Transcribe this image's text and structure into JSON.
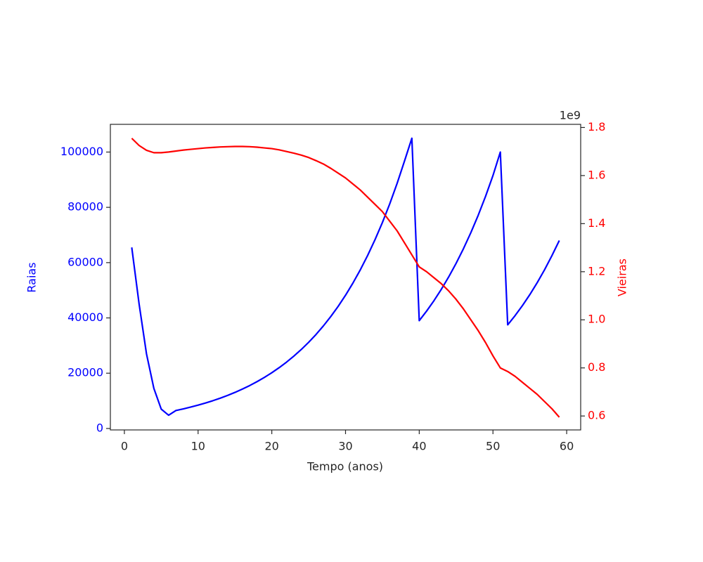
{
  "chart_data": {
    "type": "line",
    "x_label": "Tempo (anos)",
    "y_label": "Raias",
    "y2_label": "Vieiras",
    "y2_offset_label": "1e9",
    "x": [
      1,
      2,
      3,
      4,
      5,
      6,
      7,
      8,
      9,
      10,
      11,
      12,
      13,
      14,
      15,
      16,
      17,
      18,
      19,
      20,
      21,
      22,
      23,
      24,
      25,
      26,
      27,
      28,
      29,
      30,
      31,
      32,
      33,
      34,
      35,
      36,
      37,
      38,
      39,
      40,
      41,
      42,
      43,
      44,
      45,
      46,
      47,
      48,
      49,
      50,
      51,
      52,
      53,
      54,
      55,
      56,
      57,
      58,
      59
    ],
    "series": [
      {
        "name": "Raias",
        "color": "#0000ff",
        "axis": "y",
        "values": [
          65500,
          45000,
          27000,
          14500,
          7000,
          4800,
          6500,
          7090,
          7740,
          8440,
          9210,
          10050,
          10960,
          11960,
          13050,
          14240,
          15530,
          16950,
          18490,
          20170,
          22010,
          24010,
          26200,
          28580,
          31180,
          34020,
          37120,
          40500,
          44180,
          48200,
          52590,
          57370,
          62600,
          68290,
          74500,
          81280,
          88680,
          96750,
          105000,
          39000,
          42470,
          46250,
          50370,
          54850,
          59730,
          65050,
          70840,
          77140,
          84010,
          91490,
          100000,
          37500,
          40830,
          44460,
          48420,
          52730,
          57420,
          62530,
          68000
        ]
      },
      {
        "name": "Vieiras",
        "color": "#ff0000",
        "axis": "y2",
        "values": [
          1.755,
          1.725,
          1.705,
          1.695,
          1.695,
          1.698,
          1.702,
          1.706,
          1.709,
          1.712,
          1.715,
          1.717,
          1.719,
          1.72,
          1.721,
          1.721,
          1.72,
          1.718,
          1.715,
          1.712,
          1.707,
          1.7,
          1.693,
          1.685,
          1.675,
          1.662,
          1.648,
          1.63,
          1.61,
          1.59,
          1.565,
          1.54,
          1.51,
          1.48,
          1.45,
          1.41,
          1.37,
          1.32,
          1.27,
          1.22,
          1.2,
          1.175,
          1.15,
          1.12,
          1.085,
          1.045,
          1.0,
          0.955,
          0.905,
          0.85,
          0.8,
          0.785,
          0.765,
          0.74,
          0.715,
          0.69,
          0.66,
          0.63,
          0.595
        ]
      }
    ],
    "xlim": [
      -1.9,
      61.9
    ],
    "xticks": [
      0,
      10,
      20,
      30,
      40,
      50,
      60
    ],
    "ylim": [
      -525,
      110025
    ],
    "yticks": [
      0,
      20000,
      40000,
      60000,
      80000,
      100000
    ],
    "y2lim": [
      0.542,
      1.813
    ],
    "y2ticks": [
      0.6,
      0.8,
      {
        "value": 1,
        "label": "1.0"
      },
      1.2,
      1.4,
      1.6,
      1.8
    ],
    "grid": false
  }
}
